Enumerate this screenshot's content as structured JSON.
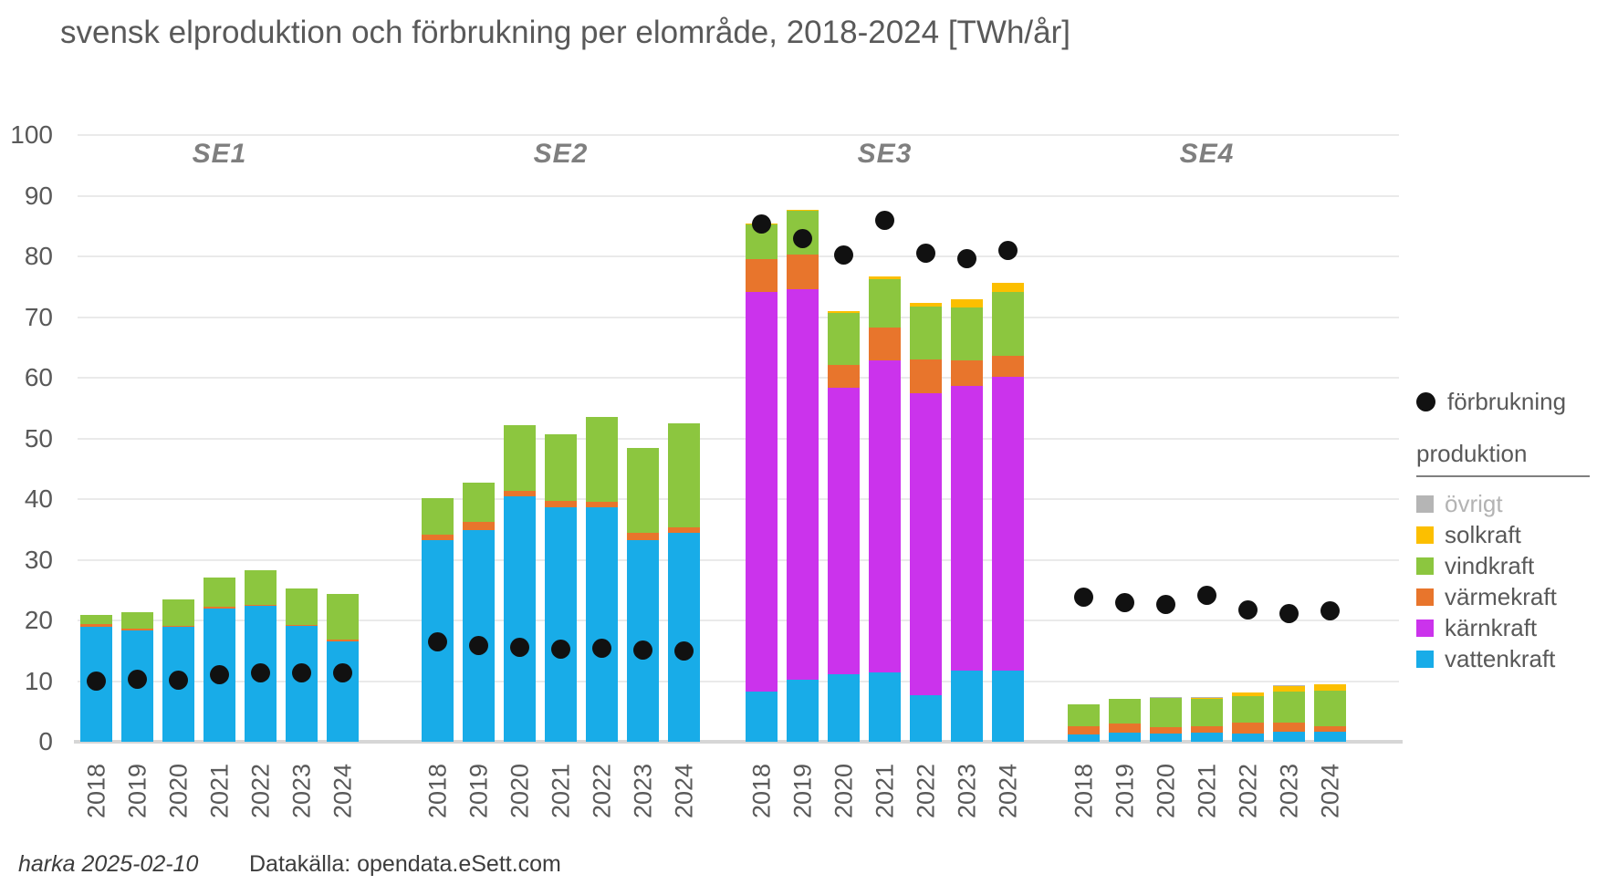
{
  "title": "svensk elproduktion och förbrukning per elområde, 2018-2024 [TWh/år]",
  "footer": {
    "left": "harka 2025-02-10",
    "right": "Datakälla: opendata.eSett.com"
  },
  "legend": {
    "consumption_label": "förbrukning",
    "consumption_marker": "black-dot",
    "production_label": "produktion",
    "items": [
      {
        "key": "övrigt",
        "label": "övrigt",
        "color": "#b5b5b5",
        "muted": true
      },
      {
        "key": "solkraft",
        "label": "solkraft",
        "color": "#fcbf00",
        "muted": false
      },
      {
        "key": "vindkraft",
        "label": "vindkraft",
        "color": "#8cc63f",
        "muted": false
      },
      {
        "key": "värmekraft",
        "label": "värmekraft",
        "color": "#e8752c",
        "muted": false
      },
      {
        "key": "kärnkraft",
        "label": "kärnkraft",
        "color": "#cb33ec",
        "muted": false
      },
      {
        "key": "vattenkraft",
        "label": "vattenkraft",
        "color": "#18ace8",
        "muted": false
      }
    ]
  },
  "chart_data": {
    "type": "bar",
    "subtype": "stacked-bars-with-consumption-dots",
    "title": "svensk elproduktion och förbrukning per elområde, 2018-2024 [TWh/år]",
    "xlabel": "",
    "ylabel": "",
    "unit": "TWh/år",
    "ylim": [
      0,
      100
    ],
    "ytick_step": 10,
    "yticks": [
      0,
      10,
      20,
      30,
      40,
      50,
      60,
      70,
      80,
      90,
      100
    ],
    "grid": true,
    "legend_position": "right",
    "years": [
      "2018",
      "2019",
      "2020",
      "2021",
      "2022",
      "2023",
      "2024"
    ],
    "stack_order": [
      "vattenkraft",
      "kärnkraft",
      "värmekraft",
      "vindkraft",
      "solkraft",
      "övrigt"
    ],
    "colors": {
      "vattenkraft": "#18ace8",
      "kärnkraft": "#cb33ec",
      "värmekraft": "#e8752c",
      "vindkraft": "#8cc63f",
      "solkraft": "#fcbf00",
      "övrigt": "#b5b5b5",
      "förbrukning": "#111111"
    },
    "groups": [
      {
        "name": "SE1",
        "production": {
          "vattenkraft": [
            19.0,
            18.3,
            18.9,
            22.0,
            22.4,
            19.2,
            16.6
          ],
          "kärnkraft": [
            0,
            0,
            0,
            0,
            0,
            0,
            0
          ],
          "värmekraft": [
            0.4,
            0.3,
            0.2,
            0.2,
            0.2,
            0.1,
            0.2
          ],
          "vindkraft": [
            1.5,
            2.7,
            4.3,
            4.9,
            5.7,
            5.9,
            7.5
          ],
          "solkraft": [
            0,
            0,
            0,
            0,
            0,
            0,
            0
          ],
          "övrigt": [
            0,
            0,
            0,
            0,
            0,
            0,
            0
          ]
        },
        "förbrukning": [
          10.0,
          10.3,
          10.1,
          11.0,
          11.3,
          11.3,
          11.4
        ]
      },
      {
        "name": "SE2",
        "production": {
          "vattenkraft": [
            33.2,
            34.9,
            40.5,
            38.7,
            38.7,
            33.2,
            34.5
          ],
          "kärnkraft": [
            0,
            0,
            0,
            0,
            0,
            0,
            0
          ],
          "värmekraft": [
            1.0,
            1.3,
            0.9,
            1.0,
            0.8,
            1.2,
            0.8
          ],
          "vindkraft": [
            6.0,
            6.5,
            10.8,
            11.0,
            14.0,
            14.1,
            17.2
          ],
          "solkraft": [
            0,
            0,
            0,
            0,
            0,
            0,
            0
          ],
          "övrigt": [
            0,
            0,
            0,
            0,
            0,
            0,
            0
          ]
        },
        "förbrukning": [
          16.4,
          15.8,
          15.6,
          15.3,
          15.4,
          15.1,
          15.0
        ]
      },
      {
        "name": "SE3",
        "production": {
          "vattenkraft": [
            8.3,
            10.3,
            11.1,
            11.4,
            7.6,
            11.8,
            11.7
          ],
          "kärnkraft": [
            65.8,
            64.3,
            47.2,
            51.4,
            49.8,
            46.8,
            48.4
          ],
          "värmekraft": [
            5.5,
            5.7,
            3.8,
            5.4,
            5.6,
            4.3,
            3.5
          ],
          "vindkraft": [
            5.7,
            7.2,
            8.6,
            8.0,
            8.8,
            8.7,
            10.5
          ],
          "solkraft": [
            0.1,
            0.1,
            0.3,
            0.5,
            0.5,
            1.3,
            1.5
          ],
          "övrigt": [
            0,
            0,
            0,
            0,
            0,
            0,
            0
          ]
        },
        "förbrukning": [
          85.3,
          82.9,
          80.3,
          85.9,
          80.6,
          79.6,
          81.0
        ]
      },
      {
        "name": "SE4",
        "production": {
          "vattenkraft": [
            1.2,
            1.5,
            1.4,
            1.5,
            1.4,
            1.7,
            1.6
          ],
          "kärnkraft": [
            0,
            0,
            0,
            0,
            0,
            0,
            0
          ],
          "värmekraft": [
            1.4,
            1.5,
            1.0,
            1.1,
            1.7,
            1.5,
            1.0
          ],
          "vindkraft": [
            3.6,
            4.0,
            4.8,
            4.4,
            4.4,
            5.0,
            5.8
          ],
          "solkraft": [
            0,
            0,
            0.1,
            0.2,
            0.6,
            1.0,
            1.1
          ],
          "övrigt": [
            0,
            0,
            0.1,
            0.2,
            0,
            0.2,
            0
          ]
        },
        "förbrukning": [
          23.9,
          22.9,
          22.7,
          24.2,
          21.8,
          21.2,
          21.6
        ]
      }
    ]
  }
}
